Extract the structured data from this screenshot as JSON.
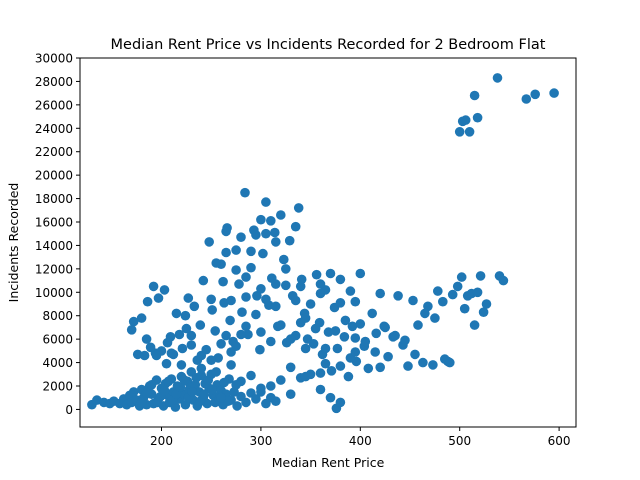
{
  "chart_data": {
    "type": "scatter",
    "title": "Median Rent Price vs Incidents Recorded for 2 Bedroom Flat",
    "xlabel": "Median Rent Price",
    "ylabel": "Incidents Recorded",
    "xlim": [
      118,
      617
    ],
    "ylim": [
      -1500,
      30000
    ],
    "xticks": [
      200,
      300,
      400,
      500,
      600
    ],
    "yticks": [
      0,
      2000,
      4000,
      6000,
      8000,
      10000,
      12000,
      14000,
      16000,
      18000,
      20000,
      22000,
      24000,
      26000,
      28000,
      30000
    ],
    "grid": false,
    "color": "#1f77b4",
    "points": [
      [
        130,
        400
      ],
      [
        135,
        800
      ],
      [
        142,
        600
      ],
      [
        148,
        500
      ],
      [
        152,
        700
      ],
      [
        158,
        500
      ],
      [
        162,
        900
      ],
      [
        165,
        400
      ],
      [
        168,
        1200
      ],
      [
        170,
        600
      ],
      [
        172,
        1500
      ],
      [
        175,
        800
      ],
      [
        178,
        300
      ],
      [
        180,
        1700
      ],
      [
        182,
        1000
      ],
      [
        185,
        400
      ],
      [
        188,
        2000
      ],
      [
        190,
        1300
      ],
      [
        192,
        500
      ],
      [
        195,
        2500
      ],
      [
        197,
        900
      ],
      [
        200,
        1800
      ],
      [
        202,
        300
      ],
      [
        204,
        2200
      ],
      [
        206,
        1200
      ],
      [
        208,
        600
      ],
      [
        210,
        2600
      ],
      [
        212,
        1500
      ],
      [
        214,
        200
      ],
      [
        216,
        2000
      ],
      [
        218,
        900
      ],
      [
        220,
        2800
      ],
      [
        222,
        1300
      ],
      [
        224,
        400
      ],
      [
        226,
        2400
      ],
      [
        228,
        1700
      ],
      [
        230,
        3200
      ],
      [
        232,
        800
      ],
      [
        234,
        2100
      ],
      [
        236,
        300
      ],
      [
        238,
        1500
      ],
      [
        240,
        2900
      ],
      [
        242,
        1000
      ],
      [
        244,
        2200
      ],
      [
        246,
        500
      ],
      [
        248,
        1800
      ],
      [
        250,
        3000
      ],
      [
        252,
        1200
      ],
      [
        254,
        600
      ],
      [
        256,
        2100
      ],
      [
        258,
        900
      ],
      [
        260,
        1600
      ],
      [
        262,
        400
      ],
      [
        265,
        1300
      ],
      [
        268,
        2600
      ],
      [
        270,
        800
      ],
      [
        273,
        1500
      ],
      [
        276,
        300
      ],
      [
        280,
        1100
      ],
      [
        285,
        600
      ],
      [
        290,
        1400
      ],
      [
        295,
        900
      ],
      [
        300,
        1500
      ],
      [
        305,
        500
      ],
      [
        310,
        1000
      ],
      [
        315,
        700
      ],
      [
        180,
        600
      ],
      [
        185,
        1400
      ],
      [
        190,
        2100
      ],
      [
        196,
        600
      ],
      [
        199,
        1100
      ],
      [
        203,
        1600
      ],
      [
        207,
        2400
      ],
      [
        211,
        800
      ],
      [
        215,
        1300
      ],
      [
        219,
        1900
      ],
      [
        223,
        2500
      ],
      [
        227,
        1000
      ],
      [
        231,
        1500
      ],
      [
        235,
        2700
      ],
      [
        239,
        700
      ],
      [
        243,
        1300
      ],
      [
        247,
        2500
      ],
      [
        251,
        1700
      ],
      [
        255,
        3200
      ],
      [
        259,
        1100
      ],
      [
        263,
        2300
      ],
      [
        267,
        700
      ],
      [
        172,
        7500
      ],
      [
        176,
        4700
      ],
      [
        180,
        7800
      ],
      [
        183,
        4600
      ],
      [
        186,
        9200
      ],
      [
        189,
        5300
      ],
      [
        192,
        10500
      ],
      [
        194,
        4800
      ],
      [
        197,
        9500
      ],
      [
        200,
        5000
      ],
      [
        203,
        10200
      ],
      [
        206,
        5700
      ],
      [
        209,
        6200
      ],
      [
        212,
        4700
      ],
      [
        215,
        8200
      ],
      [
        218,
        6400
      ],
      [
        221,
        5200
      ],
      [
        224,
        8000
      ],
      [
        227,
        9500
      ],
      [
        230,
        6300
      ],
      [
        233,
        8800
      ],
      [
        236,
        4200
      ],
      [
        239,
        7200
      ],
      [
        242,
        11000
      ],
      [
        245,
        5100
      ],
      [
        248,
        14300
      ],
      [
        251,
        8500
      ],
      [
        254,
        6700
      ],
      [
        257,
        4400
      ],
      [
        260,
        12400
      ],
      [
        263,
        9100
      ],
      [
        266,
        15500
      ],
      [
        269,
        7600
      ],
      [
        272,
        5800
      ],
      [
        275,
        13600
      ],
      [
        278,
        10700
      ],
      [
        281,
        8300
      ],
      [
        284,
        18500
      ],
      [
        287,
        6400
      ],
      [
        290,
        12100
      ],
      [
        293,
        15300
      ],
      [
        296,
        9700
      ],
      [
        299,
        5100
      ],
      [
        302,
        13300
      ],
      [
        305,
        17700
      ],
      [
        308,
        8900
      ],
      [
        311,
        11200
      ],
      [
        314,
        15100
      ],
      [
        317,
        7100
      ],
      [
        320,
        16600
      ],
      [
        323,
        12800
      ],
      [
        326,
        5700
      ],
      [
        329,
        14400
      ],
      [
        332,
        9700
      ],
      [
        335,
        6300
      ],
      [
        338,
        17200
      ],
      [
        341,
        11100
      ],
      [
        344,
        8200
      ],
      [
        347,
        6000
      ],
      [
        350,
        9000
      ],
      [
        353,
        5600
      ],
      [
        356,
        11500
      ],
      [
        359,
        7400
      ],
      [
        362,
        4700
      ],
      [
        365,
        10200
      ],
      [
        368,
        6600
      ],
      [
        371,
        3300
      ],
      [
        374,
        8700
      ],
      [
        377,
        5200
      ],
      [
        380,
        11100
      ],
      [
        384,
        6200
      ],
      [
        388,
        2800
      ],
      [
        392,
        7100
      ],
      [
        396,
        4100
      ],
      [
        400,
        7300
      ],
      [
        404,
        5400
      ],
      [
        408,
        3500
      ],
      [
        412,
        8200
      ],
      [
        416,
        6500
      ],
      [
        420,
        3600
      ],
      [
        424,
        7100
      ],
      [
        428,
        4500
      ],
      [
        433,
        6200
      ],
      [
        438,
        9700
      ],
      [
        443,
        5500
      ],
      [
        448,
        3700
      ],
      [
        453,
        9300
      ],
      [
        458,
        7200
      ],
      [
        463,
        4000
      ],
      [
        468,
        8800
      ],
      [
        473,
        3800
      ],
      [
        478,
        10100
      ],
      [
        483,
        9200
      ],
      [
        488,
        4100
      ],
      [
        493,
        9800
      ],
      [
        498,
        10500
      ],
      [
        502,
        11300
      ],
      [
        505,
        8600
      ],
      [
        508,
        9700
      ],
      [
        512,
        9900
      ],
      [
        515,
        7200
      ],
      [
        518,
        10000
      ],
      [
        521,
        11400
      ],
      [
        524,
        8300
      ],
      [
        527,
        9000
      ],
      [
        540,
        11400
      ],
      [
        544,
        11000
      ],
      [
        500,
        23700
      ],
      [
        503,
        24600
      ],
      [
        506,
        24700
      ],
      [
        510,
        23700
      ],
      [
        515,
        26800
      ],
      [
        518,
        24900
      ],
      [
        538,
        28300
      ],
      [
        567,
        26500
      ],
      [
        576,
        26900
      ],
      [
        595,
        27000
      ],
      [
        376,
        100
      ],
      [
        270,
        3800
      ],
      [
        280,
        2400
      ],
      [
        290,
        2900
      ],
      [
        300,
        1800
      ],
      [
        310,
        2000
      ],
      [
        320,
        2500
      ],
      [
        330,
        1300
      ],
      [
        340,
        2700
      ],
      [
        350,
        3000
      ],
      [
        360,
        1700
      ],
      [
        370,
        1000
      ],
      [
        380,
        600
      ],
      [
        390,
        4400
      ],
      [
        395,
        4900
      ],
      [
        250,
        4200
      ],
      [
        260,
        5600
      ],
      [
        270,
        4900
      ],
      [
        280,
        6400
      ],
      [
        300,
        6600
      ],
      [
        310,
        5800
      ],
      [
        320,
        7200
      ],
      [
        330,
        6000
      ],
      [
        340,
        7400
      ],
      [
        345,
        5200
      ],
      [
        355,
        6900
      ],
      [
        365,
        5200
      ],
      [
        375,
        6700
      ],
      [
        385,
        7600
      ],
      [
        395,
        6100
      ],
      [
        405,
        5800
      ],
      [
        415,
        4900
      ],
      [
        425,
        7000
      ],
      [
        435,
        6300
      ],
      [
        445,
        5900
      ],
      [
        455,
        4700
      ],
      [
        465,
        8200
      ],
      [
        475,
        7800
      ],
      [
        485,
        4300
      ],
      [
        490,
        4000
      ],
      [
        210,
        4800
      ],
      [
        220,
        3800
      ],
      [
        230,
        5500
      ],
      [
        240,
        4600
      ],
      [
        265,
        6300
      ],
      [
        275,
        5400
      ],
      [
        285,
        7100
      ],
      [
        295,
        8100
      ],
      [
        305,
        9400
      ],
      [
        315,
        8800
      ],
      [
        325,
        10600
      ],
      [
        335,
        9300
      ],
      [
        345,
        7800
      ],
      [
        360,
        9900
      ],
      [
        370,
        11600
      ],
      [
        380,
        9100
      ],
      [
        290,
        13500
      ],
      [
        295,
        14900
      ],
      [
        300,
        16200
      ],
      [
        305,
        15000
      ],
      [
        310,
        16100
      ],
      [
        315,
        14300
      ],
      [
        325,
        12000
      ],
      [
        335,
        15600
      ],
      [
        285,
        11300
      ],
      [
        275,
        11900
      ],
      [
        265,
        13400
      ],
      [
        265,
        15200
      ],
      [
        280,
        14700
      ],
      [
        250,
        9400
      ],
      [
        255,
        12500
      ],
      [
        262,
        10900
      ],
      [
        270,
        9300
      ],
      [
        285,
        9600
      ],
      [
        300,
        10300
      ],
      [
        315,
        10700
      ],
      [
        340,
        10500
      ],
      [
        360,
        10700
      ],
      [
        390,
        10100
      ],
      [
        395,
        9200
      ],
      [
        400,
        11600
      ],
      [
        420,
        9900
      ],
      [
        170,
        6800
      ],
      [
        185,
        6000
      ],
      [
        225,
        6900
      ],
      [
        195,
        4600
      ],
      [
        205,
        3900
      ],
      [
        240,
        3500
      ],
      [
        260,
        1000
      ],
      [
        275,
        2100
      ],
      [
        330,
        3600
      ],
      [
        345,
        2800
      ],
      [
        360,
        3100
      ],
      [
        365,
        3900
      ],
      [
        380,
        3700
      ]
    ]
  }
}
